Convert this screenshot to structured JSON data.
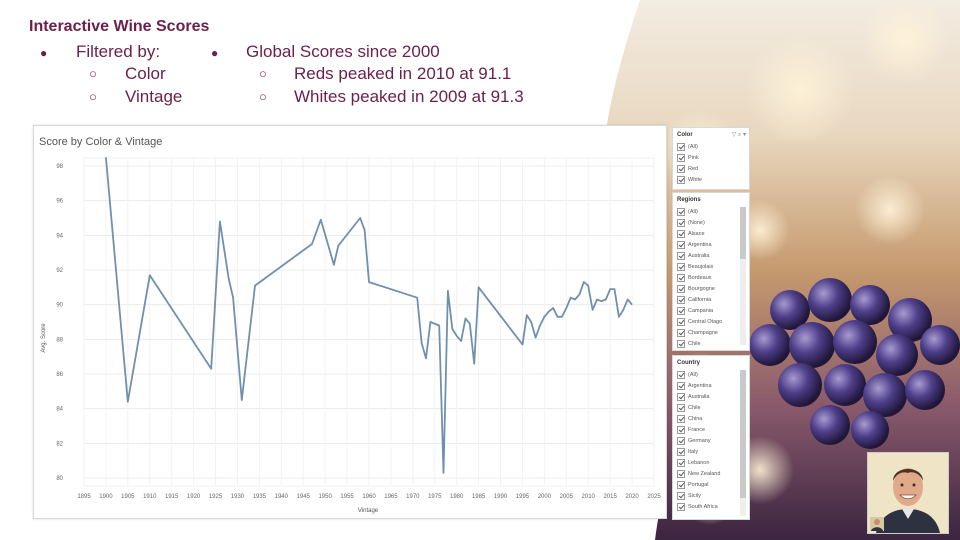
{
  "slide": {
    "title": "Interactive Wine Scores",
    "left_bullet": "Filtered by:",
    "left_sub": [
      "Color",
      "Vintage"
    ],
    "right_bullet": "Global Scores since 2000",
    "right_sub": [
      "Reds peaked in 2010 at 91.1",
      "Whites peaked in 2009 at 91.3"
    ],
    "bullet_glyph": "●",
    "sub_glyph": "○"
  },
  "filters": {
    "color": {
      "title": "Color",
      "tools": "▽ ⌕ ▾",
      "options": [
        "(All)",
        "Pink",
        "Red",
        "White"
      ]
    },
    "regions": {
      "title": "Regions",
      "options": [
        "(All)",
        "(None)",
        "Alsace",
        "Argentina",
        "Australia",
        "Beaujolais",
        "Bordeaux",
        "Bourgogne",
        "California",
        "Campania",
        "Central Otago",
        "Champagne",
        "Chile"
      ]
    },
    "country": {
      "title": "Country",
      "options": [
        "(All)",
        "Argentina",
        "Australia",
        "Chile",
        "China",
        "France",
        "Germany",
        "Italy",
        "Lebanon",
        "New Zealand",
        "Portugal",
        "Sicily",
        "South Africa"
      ]
    }
  },
  "chart_data": {
    "type": "line",
    "title": "Score by Color & Vintage",
    "xlabel": "Vintage",
    "ylabel": "Avg. Score",
    "xlim": [
      1895,
      2025
    ],
    "ylim": [
      80,
      98
    ],
    "xticks": [
      1895,
      1900,
      1905,
      1910,
      1915,
      1920,
      1925,
      1930,
      1935,
      1940,
      1945,
      1950,
      1955,
      1960,
      1965,
      1970,
      1975,
      1980,
      1985,
      1990,
      1995,
      2000,
      2005,
      2010,
      2015,
      2020,
      2025
    ],
    "yticks": [
      80,
      82,
      84,
      86,
      88,
      90,
      92,
      94,
      96,
      98
    ],
    "grid": true,
    "color": "#7190ad",
    "series": [
      {
        "x": [
          1900,
          1903,
          1905,
          1910,
          1924,
          1926,
          1928,
          1929,
          1931,
          1934,
          1947,
          1949,
          1952,
          1953,
          1958,
          1959,
          1960,
          1971,
          1972,
          1973,
          1974,
          1976,
          1977,
          1978,
          1979,
          1980,
          1981,
          1982,
          1983,
          1984,
          1985,
          1995,
          1996,
          1997,
          1998,
          1999,
          2000,
          2001,
          2002,
          2003,
          2004,
          2005,
          2006,
          2007,
          2008,
          2009,
          2010,
          2011,
          2012,
          2013,
          2014,
          2015,
          2016,
          2017,
          2018,
          2019,
          2020
        ],
        "values": [
          98.5,
          90.0,
          84.4,
          91.7,
          86.3,
          94.8,
          91.5,
          90.4,
          84.5,
          91.1,
          93.5,
          94.9,
          92.3,
          93.4,
          95.0,
          94.3,
          91.3,
          90.4,
          87.8,
          86.9,
          89.0,
          88.8,
          80.3,
          90.8,
          88.6,
          88.2,
          87.9,
          89.2,
          88.9,
          86.6,
          91.0,
          87.7,
          89.4,
          89.0,
          88.1,
          88.8,
          89.3,
          89.6,
          89.8,
          89.3,
          89.3,
          89.8,
          90.4,
          90.3,
          90.6,
          91.3,
          91.1,
          89.7,
          90.3,
          90.2,
          90.3,
          90.9,
          90.9,
          89.3,
          89.7,
          90.3,
          90.0
        ]
      }
    ]
  }
}
